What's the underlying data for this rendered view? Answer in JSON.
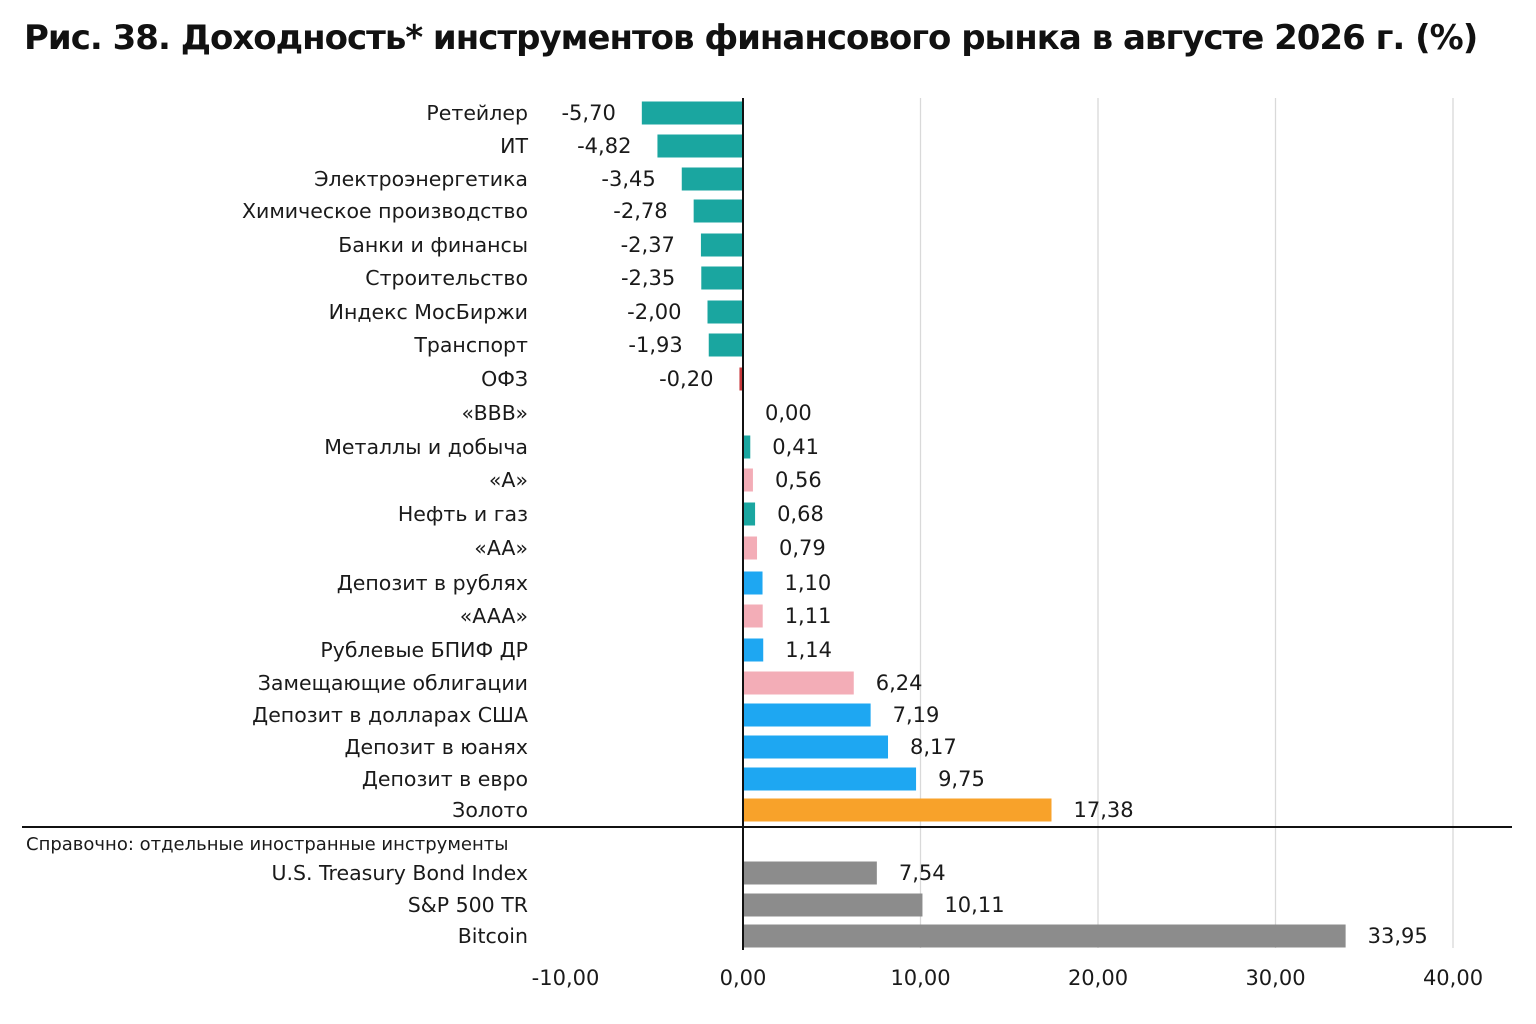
{
  "title": "Рис. 38. Доходность* инструментов финансового рынка в августе 2026 г. (%)",
  "colors": {
    "teal": "#1aa6a0",
    "red": "#c8383c",
    "pink": "#f3adb7",
    "blue": "#1ea7f2",
    "orange": "#f8a22a",
    "gray": "#8c8c8c"
  },
  "chart_data": {
    "type": "bar",
    "orientation": "horizontal",
    "xlim": [
      -10,
      40
    ],
    "xticks": [
      "-10,00",
      "0,00",
      "10,00",
      "20,00",
      "30,00",
      "40,00"
    ],
    "xtick_values": [
      -10,
      0,
      10,
      20,
      30,
      40
    ],
    "grid": "vertical",
    "reference_label": "Справочно: отдельные иностранные инструменты",
    "categories": [
      {
        "name": "Ретейлер",
        "value": -5.7,
        "label": "-5,70",
        "color": "teal"
      },
      {
        "name": "ИТ",
        "value": -4.82,
        "label": "-4,82",
        "color": "teal"
      },
      {
        "name": "Электроэнергетика",
        "value": -3.45,
        "label": "-3,45",
        "color": "teal"
      },
      {
        "name": "Химическое производство",
        "value": -2.78,
        "label": "-2,78",
        "color": "teal"
      },
      {
        "name": "Банки и финансы",
        "value": -2.37,
        "label": "-2,37",
        "color": "teal"
      },
      {
        "name": "Строительство",
        "value": -2.35,
        "label": "-2,35",
        "color": "teal"
      },
      {
        "name": "Индекс МосБиржи",
        "value": -2.0,
        "label": "-2,00",
        "color": "teal"
      },
      {
        "name": "Транспорт",
        "value": -1.93,
        "label": "-1,93",
        "color": "teal"
      },
      {
        "name": "ОФЗ",
        "value": -0.2,
        "label": "-0,20",
        "color": "red"
      },
      {
        "name": "«BBB»",
        "value": 0.0,
        "label": "0,00",
        "color": "pink"
      },
      {
        "name": "Металлы и добыча",
        "value": 0.41,
        "label": "0,41",
        "color": "teal"
      },
      {
        "name": "«A»",
        "value": 0.56,
        "label": "0,56",
        "color": "pink"
      },
      {
        "name": "Нефть и газ",
        "value": 0.68,
        "label": "0,68",
        "color": "teal"
      },
      {
        "name": "«AA»",
        "value": 0.79,
        "label": "0,79",
        "color": "pink"
      },
      {
        "name": "Депозит в рублях",
        "value": 1.1,
        "label": "1,10",
        "color": "blue"
      },
      {
        "name": "«AAA»",
        "value": 1.11,
        "label": "1,11",
        "color": "pink"
      },
      {
        "name": "Рублевые БПИФ ДР",
        "value": 1.14,
        "label": "1,14",
        "color": "blue"
      },
      {
        "name": "Замещающие облигации",
        "value": 6.24,
        "label": "6,24",
        "color": "pink"
      },
      {
        "name": "Депозит в долларах США",
        "value": 7.19,
        "label": "7,19",
        "color": "blue"
      },
      {
        "name": "Депозит в юанях",
        "value": 8.17,
        "label": "8,17",
        "color": "blue"
      },
      {
        "name": "Депозит в евро",
        "value": 9.75,
        "label": "9,75",
        "color": "blue"
      },
      {
        "name": "Золото",
        "value": 17.38,
        "label": "17,38",
        "color": "orange"
      }
    ],
    "reference_categories": [
      {
        "name": "U.S. Treasury Bond Index",
        "value": 7.54,
        "label": "7,54",
        "color": "gray"
      },
      {
        "name": "S&P 500 TR",
        "value": 10.11,
        "label": "10,11",
        "color": "gray"
      },
      {
        "name": "Bitcoin",
        "value": 33.95,
        "label": "33,95",
        "color": "gray"
      }
    ]
  }
}
